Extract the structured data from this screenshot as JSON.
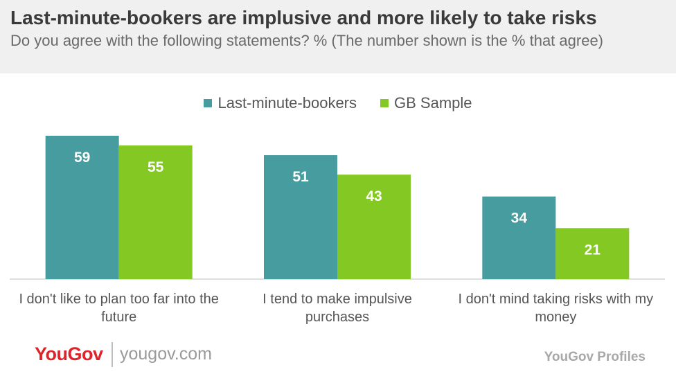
{
  "header": {
    "title": "Last-minute-bookers are implusive and more likely to take risks",
    "subtitle": "Do you agree with the following statements? % (The number shown is the % that agree)"
  },
  "colors": {
    "last_minute": "#469c9e",
    "gb_sample": "#84c824",
    "baseline": "#bdbdbd"
  },
  "chart_data": {
    "type": "bar",
    "title": "Last-minute-bookers are implusive and more likely to take risks",
    "subtitle": "Do you agree with the following statements? % (The number shown is the % that agree)",
    "categories": [
      "I don't like to plan too far into the future",
      "I tend to make impulsive purchases",
      "I don't mind taking risks with my money"
    ],
    "category_lines": [
      [
        "I don't like to plan too far into the",
        "future"
      ],
      [
        "I tend to make impulsive",
        "purchases"
      ],
      [
        "I don't mind taking risks with my",
        "money"
      ]
    ],
    "series": [
      {
        "name": "Last-minute-bookers",
        "values": [
          59,
          51,
          34
        ]
      },
      {
        "name": "GB Sample",
        "values": [
          55,
          43,
          21
        ]
      }
    ],
    "ylim": [
      0,
      59
    ],
    "grid": false,
    "legend_position": "top-center",
    "data_labels": true
  },
  "footer": {
    "logo": "YouGov",
    "url": "yougov.com",
    "brand": "YouGov Profiles"
  }
}
